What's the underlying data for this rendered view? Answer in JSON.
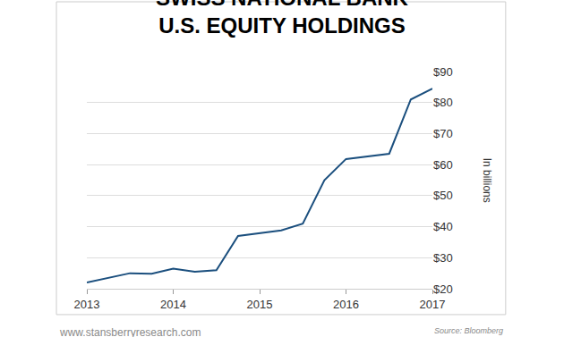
{
  "chart_data": {
    "type": "line",
    "title": "SWISS NATIONAL BANK\nU.S. EQUITY HOLDINGS",
    "y_label": "In billions",
    "annotations": [
      "www.stansberryresearch.com",
      "Source: Bloomberg"
    ],
    "x": [
      2013,
      2013.5,
      2013.75,
      2014,
      2014.25,
      2014.5,
      2014.75,
      2015.25,
      2015.5,
      2015.75,
      2016,
      2016.5,
      2016.75,
      2017
    ],
    "values": [
      22,
      25,
      24.8,
      26.5,
      25.5,
      26,
      37,
      38.8,
      41,
      55,
      61.8,
      63.5,
      81,
      84.5
    ],
    "color": "#1b4f7e",
    "xlim": [
      2013,
      2017
    ],
    "xticks": [
      2013,
      2014,
      2015,
      2016,
      2017
    ],
    "ylim": [
      20,
      90
    ],
    "yticks": [
      {
        "value": 20,
        "label": "$20"
      },
      {
        "value": 30,
        "label": "$30"
      },
      {
        "value": 40,
        "label": "$40"
      },
      {
        "value": 50,
        "label": "$50"
      },
      {
        "value": 60,
        "label": "$60"
      },
      {
        "value": 70,
        "label": "$70"
      },
      {
        "value": 80,
        "label": "$80"
      },
      {
        "value": 90,
        "label": "$90"
      }
    ],
    "grid": true
  }
}
